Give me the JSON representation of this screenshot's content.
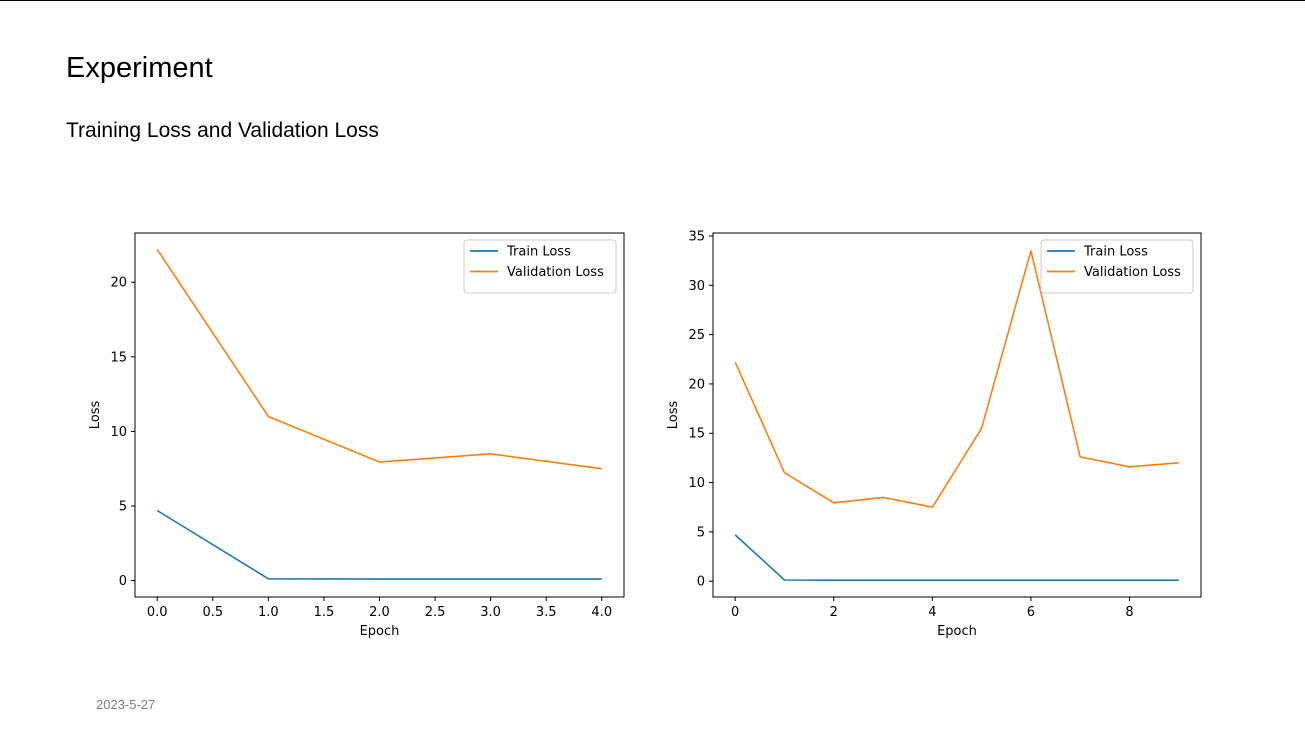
{
  "slide": {
    "title": "Experiment",
    "subtitle": "Training Loss and Validation Loss",
    "date": "2023-5-27"
  },
  "colors": {
    "train": "#1f77b4",
    "validation": "#ff7f0e"
  },
  "chart_data": [
    {
      "type": "line",
      "xlabel": "Epoch",
      "ylabel": "Loss",
      "xlim": [
        -0.2,
        4.2
      ],
      "ylim": [
        -1.1,
        23.3
      ],
      "xticks": [
        0.0,
        0.5,
        1.0,
        1.5,
        2.0,
        2.5,
        3.0,
        3.5,
        4.0
      ],
      "xtick_labels": [
        "0.0",
        "0.5",
        "1.0",
        "1.5",
        "2.0",
        "2.5",
        "3.0",
        "3.5",
        "4.0"
      ],
      "yticks": [
        0,
        5,
        10,
        15,
        20
      ],
      "ytick_labels": [
        "0",
        "5",
        "10",
        "15",
        "20"
      ],
      "legend_position": "top-right",
      "series": [
        {
          "name": "Train Loss",
          "color": "#1f77b4",
          "x": [
            0,
            1,
            2,
            3,
            4
          ],
          "y": [
            4.7,
            0.12,
            0.1,
            0.1,
            0.1
          ]
        },
        {
          "name": "Validation Loss",
          "color": "#ff7f0e",
          "x": [
            0,
            1,
            2,
            3,
            4
          ],
          "y": [
            22.2,
            11.0,
            7.95,
            8.5,
            7.5
          ]
        }
      ]
    },
    {
      "type": "line",
      "xlabel": "Epoch",
      "ylabel": "Loss",
      "xlim": [
        -0.45,
        9.45
      ],
      "ylim": [
        -1.6,
        35.3
      ],
      "xticks": [
        0,
        2,
        4,
        6,
        8
      ],
      "xtick_labels": [
        "0",
        "2",
        "4",
        "6",
        "8"
      ],
      "yticks": [
        0,
        5,
        10,
        15,
        20,
        25,
        30,
        35
      ],
      "ytick_labels": [
        "0",
        "5",
        "10",
        "15",
        "20",
        "25",
        "30",
        "35"
      ],
      "legend_position": "top-right",
      "series": [
        {
          "name": "Train Loss",
          "color": "#1f77b4",
          "x": [
            0,
            1,
            2,
            3,
            4,
            5,
            6,
            7,
            8,
            9
          ],
          "y": [
            4.7,
            0.12,
            0.1,
            0.1,
            0.1,
            0.1,
            0.1,
            0.1,
            0.1,
            0.1
          ]
        },
        {
          "name": "Validation Loss",
          "color": "#ff7f0e",
          "x": [
            0,
            1,
            2,
            3,
            4,
            5,
            6,
            7,
            8,
            9
          ],
          "y": [
            22.2,
            11.0,
            7.95,
            8.5,
            7.5,
            15.5,
            33.5,
            12.6,
            11.6,
            12.0
          ]
        }
      ]
    }
  ]
}
